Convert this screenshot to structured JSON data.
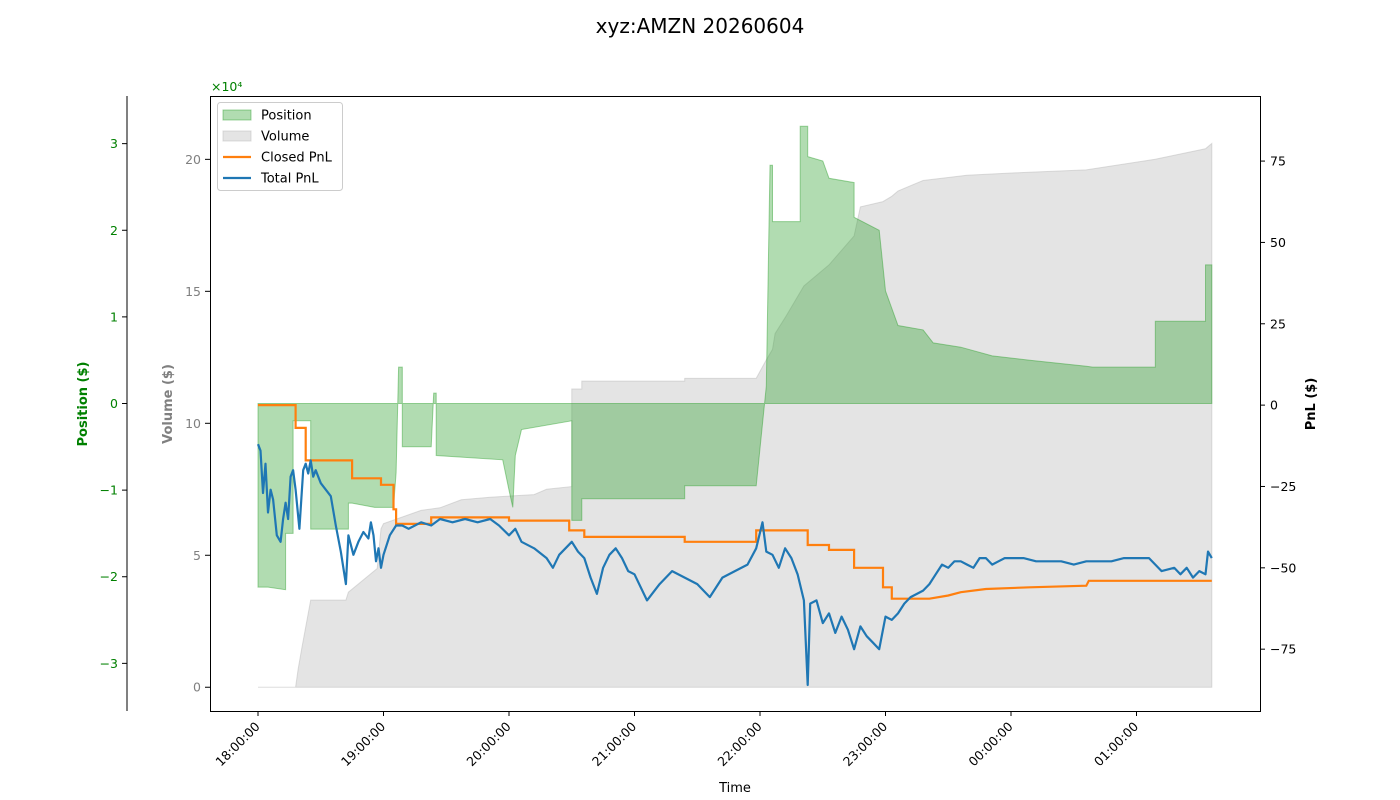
{
  "chart_data": {
    "type": "area",
    "title": "xyz:AMZN 20260604",
    "xlabel": "Time",
    "x_ticks": [
      "18:00:00",
      "19:00:00",
      "20:00:00",
      "21:00:00",
      "22:00:00",
      "23:00:00",
      "00:00:00",
      "01:00:00"
    ],
    "axes": {
      "position": {
        "label": "Position ($)",
        "color": "#008000",
        "ticks": [
          -3,
          -2,
          -1,
          0,
          1,
          2,
          3
        ],
        "multiplier": "×10⁴",
        "ylim": [
          -3.55,
          3.55
        ]
      },
      "volume": {
        "label": "Volume ($)",
        "color": "#808080",
        "ticks": [
          0,
          5,
          10,
          15,
          20
        ],
        "ylim": [
          -0.9,
          22.4
        ]
      },
      "pnl": {
        "label": "PnL ($)",
        "color": "#000000",
        "ticks": [
          -75,
          -50,
          -25,
          0,
          25,
          50,
          75
        ],
        "ylim": [
          -94,
          95
        ]
      }
    },
    "legend": {
      "placement": "upper left",
      "entries": [
        "Position",
        "Volume",
        "Closed PnL",
        "Total PnL"
      ]
    },
    "colors": {
      "position": "#2ca02c",
      "volume": "#bbbbbb",
      "closed_pnl": "#ff7f0e",
      "total_pnl": "#1f77b4"
    },
    "series": {
      "volume": [
        [
          0,
          0
        ],
        [
          0.3,
          0
        ],
        [
          0.32,
          0.7
        ],
        [
          0.35,
          1.5
        ],
        [
          0.42,
          3.3
        ],
        [
          0.7,
          3.3
        ],
        [
          0.72,
          3.6
        ],
        [
          0.95,
          4.5
        ],
        [
          0.98,
          6.0
        ],
        [
          1.0,
          6.2
        ],
        [
          1.3,
          6.7
        ],
        [
          1.45,
          6.8
        ],
        [
          1.62,
          7.1
        ],
        [
          1.85,
          7.2
        ],
        [
          2.2,
          7.3
        ],
        [
          2.3,
          7.5
        ],
        [
          2.5,
          7.6
        ],
        [
          2.5,
          11.3
        ],
        [
          2.58,
          11.3
        ],
        [
          2.58,
          11.6
        ],
        [
          3.4,
          11.6
        ],
        [
          3.4,
          11.7
        ],
        [
          3.97,
          11.7
        ],
        [
          4.05,
          12.4
        ],
        [
          4.1,
          12.8
        ],
        [
          4.12,
          13.4
        ],
        [
          4.2,
          14.0
        ],
        [
          4.35,
          15.2
        ],
        [
          4.55,
          16.0
        ],
        [
          4.75,
          17.1
        ],
        [
          4.8,
          18.2
        ],
        [
          4.98,
          18.4
        ],
        [
          5.05,
          18.6
        ],
        [
          5.1,
          18.8
        ],
        [
          5.2,
          19.0
        ],
        [
          5.3,
          19.2
        ],
        [
          5.65,
          19.4
        ],
        [
          6.1,
          19.5
        ],
        [
          6.6,
          19.6
        ],
        [
          7.15,
          20.0
        ],
        [
          7.55,
          20.4
        ],
        [
          7.6,
          20.6
        ],
        [
          7.6,
          0
        ]
      ],
      "position": [
        [
          0,
          0
        ],
        [
          0,
          -2.12
        ],
        [
          0.08,
          -2.12
        ],
        [
          0.22,
          -2.15
        ],
        [
          0.22,
          -1.5
        ],
        [
          0.28,
          -1.5
        ],
        [
          0.28,
          -0.2
        ],
        [
          0.42,
          -0.2
        ],
        [
          0.42,
          -1.45
        ],
        [
          0.72,
          -1.45
        ],
        [
          0.72,
          -1.15
        ],
        [
          0.75,
          -1.15
        ],
        [
          0.93,
          -1.2
        ],
        [
          1.08,
          -1.2
        ],
        [
          1.1,
          -0.8
        ],
        [
          1.12,
          0.42
        ],
        [
          1.15,
          0.42
        ],
        [
          1.15,
          -0.5
        ],
        [
          1.38,
          -0.5
        ],
        [
          1.4,
          0.12
        ],
        [
          1.42,
          0.12
        ],
        [
          1.42,
          -0.6
        ],
        [
          1.95,
          -0.65
        ],
        [
          2.0,
          -1.0
        ],
        [
          2.03,
          -1.2
        ],
        [
          2.05,
          -0.6
        ],
        [
          2.1,
          -0.3
        ],
        [
          2.5,
          -0.2
        ],
        [
          2.5,
          -1.35
        ],
        [
          2.58,
          -1.35
        ],
        [
          2.58,
          -1.1
        ],
        [
          3.4,
          -1.1
        ],
        [
          3.4,
          -0.95
        ],
        [
          3.97,
          -0.95
        ],
        [
          4.05,
          0.2
        ],
        [
          4.08,
          2.75
        ],
        [
          4.1,
          2.75
        ],
        [
          4.1,
          2.1
        ],
        [
          4.32,
          2.1
        ],
        [
          4.32,
          3.2
        ],
        [
          4.38,
          3.2
        ],
        [
          4.38,
          2.85
        ],
        [
          4.5,
          2.8
        ],
        [
          4.55,
          2.6
        ],
        [
          4.75,
          2.55
        ],
        [
          4.75,
          2.15
        ],
        [
          4.95,
          2.0
        ],
        [
          5.0,
          1.3
        ],
        [
          5.1,
          0.9
        ],
        [
          5.3,
          0.85
        ],
        [
          5.38,
          0.7
        ],
        [
          5.6,
          0.65
        ],
        [
          5.85,
          0.55
        ],
        [
          6.15,
          0.5
        ],
        [
          6.6,
          0.43
        ],
        [
          6.65,
          0.42
        ],
        [
          7.15,
          0.42
        ],
        [
          7.15,
          0.95
        ],
        [
          7.55,
          0.95
        ],
        [
          7.55,
          1.6
        ],
        [
          7.6,
          1.6
        ],
        [
          7.6,
          0
        ]
      ],
      "closed_pnl": [
        [
          0,
          0
        ],
        [
          0.3,
          0
        ],
        [
          0.3,
          -7
        ],
        [
          0.38,
          -7
        ],
        [
          0.38,
          -17
        ],
        [
          0.75,
          -17
        ],
        [
          0.75,
          -22.5
        ],
        [
          0.98,
          -22.5
        ],
        [
          0.98,
          -24.5
        ],
        [
          1.08,
          -24.5
        ],
        [
          1.08,
          -32
        ],
        [
          1.1,
          -32
        ],
        [
          1.1,
          -36.5
        ],
        [
          1.38,
          -36.5
        ],
        [
          1.38,
          -34.5
        ],
        [
          2.0,
          -34.5
        ],
        [
          2.0,
          -35.5
        ],
        [
          2.48,
          -35.5
        ],
        [
          2.48,
          -38.5
        ],
        [
          2.6,
          -38.5
        ],
        [
          2.6,
          -40.5
        ],
        [
          3.4,
          -40.5
        ],
        [
          3.4,
          -42
        ],
        [
          3.97,
          -42
        ],
        [
          3.97,
          -38.5
        ],
        [
          4.38,
          -38.5
        ],
        [
          4.38,
          -43
        ],
        [
          4.55,
          -43
        ],
        [
          4.55,
          -44.5
        ],
        [
          4.75,
          -44.5
        ],
        [
          4.75,
          -50
        ],
        [
          4.98,
          -50
        ],
        [
          4.98,
          -56
        ],
        [
          5.05,
          -56
        ],
        [
          5.05,
          -59.5
        ],
        [
          5.35,
          -59.5
        ],
        [
          5.5,
          -58.5
        ],
        [
          5.6,
          -57.5
        ],
        [
          5.8,
          -56.5
        ],
        [
          6.15,
          -56
        ],
        [
          6.6,
          -55.5
        ],
        [
          6.62,
          -54
        ],
        [
          7.55,
          -54
        ],
        [
          7.6,
          -54
        ]
      ],
      "total_pnl": [
        [
          0,
          -12
        ],
        [
          0.02,
          -14
        ],
        [
          0.04,
          -27
        ],
        [
          0.06,
          -18
        ],
        [
          0.08,
          -33
        ],
        [
          0.1,
          -26
        ],
        [
          0.12,
          -29
        ],
        [
          0.15,
          -40
        ],
        [
          0.18,
          -42
        ],
        [
          0.2,
          -35
        ],
        [
          0.22,
          -30
        ],
        [
          0.24,
          -35
        ],
        [
          0.26,
          -22
        ],
        [
          0.28,
          -20
        ],
        [
          0.3,
          -26
        ],
        [
          0.33,
          -38
        ],
        [
          0.36,
          -20
        ],
        [
          0.38,
          -18
        ],
        [
          0.4,
          -21
        ],
        [
          0.42,
          -17
        ],
        [
          0.44,
          -22
        ],
        [
          0.46,
          -20
        ],
        [
          0.5,
          -24
        ],
        [
          0.54,
          -26
        ],
        [
          0.58,
          -28
        ],
        [
          0.62,
          -37
        ],
        [
          0.66,
          -45
        ],
        [
          0.7,
          -55
        ],
        [
          0.72,
          -40
        ],
        [
          0.76,
          -46
        ],
        [
          0.8,
          -42
        ],
        [
          0.84,
          -39
        ],
        [
          0.88,
          -41
        ],
        [
          0.9,
          -36
        ],
        [
          0.92,
          -40
        ],
        [
          0.94,
          -48
        ],
        [
          0.96,
          -44
        ],
        [
          0.98,
          -50
        ],
        [
          1.0,
          -46
        ],
        [
          1.05,
          -40
        ],
        [
          1.1,
          -37
        ],
        [
          1.15,
          -37
        ],
        [
          1.2,
          -38
        ],
        [
          1.25,
          -37
        ],
        [
          1.3,
          -36
        ],
        [
          1.38,
          -37
        ],
        [
          1.45,
          -35
        ],
        [
          1.55,
          -36
        ],
        [
          1.65,
          -35
        ],
        [
          1.75,
          -36
        ],
        [
          1.85,
          -35
        ],
        [
          1.92,
          -37
        ],
        [
          2.0,
          -40
        ],
        [
          2.05,
          -38
        ],
        [
          2.1,
          -42
        ],
        [
          2.2,
          -44
        ],
        [
          2.3,
          -47
        ],
        [
          2.35,
          -50
        ],
        [
          2.4,
          -46
        ],
        [
          2.45,
          -44
        ],
        [
          2.5,
          -42
        ],
        [
          2.55,
          -45
        ],
        [
          2.6,
          -47
        ],
        [
          2.65,
          -53
        ],
        [
          2.7,
          -58
        ],
        [
          2.75,
          -50
        ],
        [
          2.8,
          -46
        ],
        [
          2.85,
          -44
        ],
        [
          2.9,
          -47
        ],
        [
          2.95,
          -51
        ],
        [
          3.0,
          -52
        ],
        [
          3.1,
          -60
        ],
        [
          3.2,
          -55
        ],
        [
          3.3,
          -51
        ],
        [
          3.4,
          -53
        ],
        [
          3.5,
          -55
        ],
        [
          3.6,
          -59
        ],
        [
          3.7,
          -53
        ],
        [
          3.8,
          -51
        ],
        [
          3.9,
          -49
        ],
        [
          3.97,
          -44
        ],
        [
          4.02,
          -36
        ],
        [
          4.05,
          -45
        ],
        [
          4.1,
          -46
        ],
        [
          4.15,
          -50
        ],
        [
          4.2,
          -44
        ],
        [
          4.25,
          -47
        ],
        [
          4.3,
          -52
        ],
        [
          4.35,
          -60
        ],
        [
          4.38,
          -86
        ],
        [
          4.4,
          -61
        ],
        [
          4.45,
          -60
        ],
        [
          4.5,
          -67
        ],
        [
          4.55,
          -64
        ],
        [
          4.6,
          -70
        ],
        [
          4.65,
          -65
        ],
        [
          4.7,
          -69
        ],
        [
          4.75,
          -75
        ],
        [
          4.8,
          -68
        ],
        [
          4.85,
          -71
        ],
        [
          4.9,
          -73
        ],
        [
          4.95,
          -75
        ],
        [
          5.0,
          -65
        ],
        [
          5.05,
          -66
        ],
        [
          5.1,
          -64
        ],
        [
          5.15,
          -61
        ],
        [
          5.2,
          -59
        ],
        [
          5.25,
          -58
        ],
        [
          5.3,
          -57
        ],
        [
          5.35,
          -55
        ],
        [
          5.4,
          -52
        ],
        [
          5.45,
          -49
        ],
        [
          5.5,
          -50
        ],
        [
          5.55,
          -48
        ],
        [
          5.6,
          -48
        ],
        [
          5.65,
          -49
        ],
        [
          5.7,
          -50
        ],
        [
          5.75,
          -47
        ],
        [
          5.8,
          -47
        ],
        [
          5.85,
          -49
        ],
        [
          5.9,
          -48
        ],
        [
          5.95,
          -47
        ],
        [
          6.0,
          -47
        ],
        [
          6.1,
          -47
        ],
        [
          6.2,
          -48
        ],
        [
          6.3,
          -48
        ],
        [
          6.4,
          -48
        ],
        [
          6.5,
          -49
        ],
        [
          6.6,
          -48
        ],
        [
          6.7,
          -48
        ],
        [
          6.8,
          -48
        ],
        [
          6.9,
          -47
        ],
        [
          7.0,
          -47
        ],
        [
          7.1,
          -47
        ],
        [
          7.2,
          -51
        ],
        [
          7.3,
          -50
        ],
        [
          7.35,
          -52
        ],
        [
          7.4,
          -50
        ],
        [
          7.45,
          -53
        ],
        [
          7.5,
          -51
        ],
        [
          7.55,
          -52
        ],
        [
          7.57,
          -45
        ],
        [
          7.6,
          -47
        ]
      ]
    }
  }
}
